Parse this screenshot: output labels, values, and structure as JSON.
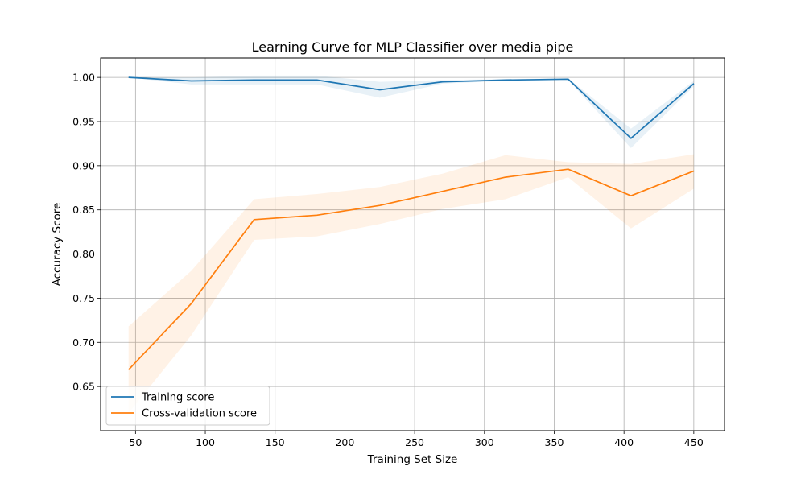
{
  "chart_data": {
    "type": "line",
    "title": "Learning Curve for MLP Classifier over media pipe",
    "xlabel": "Training Set Size",
    "ylabel": "Accuracy Score",
    "xlim": [
      25,
      472
    ],
    "ylim": [
      0.6,
      1.022
    ],
    "xticks": [
      50,
      100,
      150,
      200,
      250,
      300,
      350,
      400,
      450
    ],
    "yticks": [
      0.65,
      0.7,
      0.75,
      0.8,
      0.85,
      0.9,
      0.95,
      1.0
    ],
    "grid": true,
    "legend_position": "lower-left",
    "x": [
      45,
      90,
      135,
      180,
      225,
      270,
      315,
      360,
      405,
      450
    ],
    "series": [
      {
        "name": "Training score",
        "color": "#1f77b4",
        "values": [
          1.0,
          0.996,
          0.997,
          0.997,
          0.986,
          0.995,
          0.997,
          0.998,
          0.931,
          0.993
        ],
        "band_lower": [
          1.0,
          0.992,
          0.992,
          0.992,
          0.977,
          0.993,
          0.996,
          0.997,
          0.92,
          0.99
        ],
        "band_upper": [
          1.0,
          1.0,
          1.002,
          1.002,
          0.995,
          0.997,
          0.998,
          0.999,
          0.942,
          0.996
        ]
      },
      {
        "name": "Cross-validation score",
        "color": "#ff7f0e",
        "values": [
          0.669,
          0.744,
          0.839,
          0.844,
          0.855,
          0.871,
          0.887,
          0.896,
          0.866,
          0.894
        ],
        "band_lower": [
          0.62,
          0.708,
          0.816,
          0.82,
          0.834,
          0.851,
          0.862,
          0.887,
          0.829,
          0.874
        ],
        "band_upper": [
          0.718,
          0.781,
          0.862,
          0.868,
          0.876,
          0.891,
          0.912,
          0.904,
          0.902,
          0.913
        ]
      }
    ]
  }
}
